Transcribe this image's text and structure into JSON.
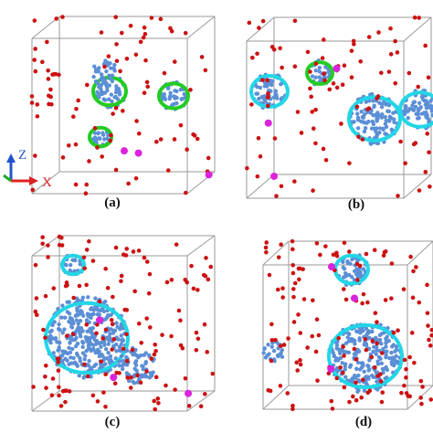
{
  "panels": [
    {
      "label": "(a)"
    },
    {
      "label": "(b)"
    },
    {
      "label": "(c)"
    },
    {
      "label": "(d)"
    }
  ],
  "axes": {
    "z": "Z",
    "x": "X"
  }
}
